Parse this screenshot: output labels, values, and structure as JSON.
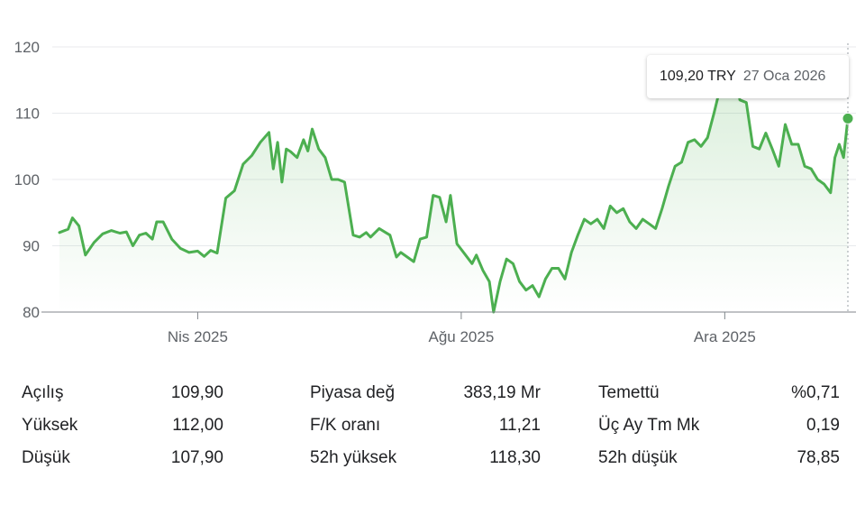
{
  "tooltip": {
    "price": "109,20 TRY",
    "date": "27 Oca 2026"
  },
  "chart_data": {
    "type": "area",
    "y_ticks": [
      80,
      90,
      100,
      110,
      120
    ],
    "y_tick_labels": [
      "80",
      "90",
      "100",
      "110",
      "120"
    ],
    "ylim": [
      80,
      120
    ],
    "x_ticks": [
      {
        "date": "2025-04-01",
        "label": "Nis 2025"
      },
      {
        "date": "2025-08-01",
        "label": "Ağu 2025"
      },
      {
        "date": "2025-12-01",
        "label": "Ara 2025"
      }
    ],
    "xlim": [
      "2025-01-27",
      "2026-01-27"
    ],
    "grid": true,
    "color": "#4caf50",
    "series": [
      {
        "values": [
          [
            "2025-01-27",
            92.0
          ],
          [
            "2025-01-31",
            92.5
          ],
          [
            "2025-02-02",
            94.2
          ],
          [
            "2025-02-05",
            93.0
          ],
          [
            "2025-02-08",
            88.6
          ],
          [
            "2025-02-12",
            90.5
          ],
          [
            "2025-02-16",
            91.8
          ],
          [
            "2025-02-20",
            92.3
          ],
          [
            "2025-02-24",
            91.9
          ],
          [
            "2025-02-27",
            92.1
          ],
          [
            "2025-03-02",
            90.0
          ],
          [
            "2025-03-05",
            91.6
          ],
          [
            "2025-03-08",
            91.9
          ],
          [
            "2025-03-11",
            91.0
          ],
          [
            "2025-03-13",
            93.6
          ],
          [
            "2025-03-16",
            93.6
          ],
          [
            "2025-03-20",
            91.0
          ],
          [
            "2025-03-24",
            89.6
          ],
          [
            "2025-03-28",
            89.0
          ],
          [
            "2025-04-01",
            89.2
          ],
          [
            "2025-04-04",
            88.4
          ],
          [
            "2025-04-07",
            89.3
          ],
          [
            "2025-04-10",
            88.9
          ],
          [
            "2025-04-14",
            97.2
          ],
          [
            "2025-04-18",
            98.3
          ],
          [
            "2025-04-22",
            102.3
          ],
          [
            "2025-04-26",
            103.6
          ],
          [
            "2025-04-30",
            105.6
          ],
          [
            "2025-05-04",
            107.1
          ],
          [
            "2025-05-06",
            101.6
          ],
          [
            "2025-05-08",
            105.6
          ],
          [
            "2025-05-10",
            99.6
          ],
          [
            "2025-05-12",
            104.6
          ],
          [
            "2025-05-14",
            104.2
          ],
          [
            "2025-05-17",
            103.3
          ],
          [
            "2025-05-20",
            106.0
          ],
          [
            "2025-05-22",
            104.3
          ],
          [
            "2025-05-24",
            107.6
          ],
          [
            "2025-05-27",
            104.6
          ],
          [
            "2025-05-30",
            103.3
          ],
          [
            "2025-06-02",
            100.0
          ],
          [
            "2025-06-05",
            100.0
          ],
          [
            "2025-06-08",
            99.6
          ],
          [
            "2025-06-12",
            91.6
          ],
          [
            "2025-06-15",
            91.3
          ],
          [
            "2025-06-18",
            92.0
          ],
          [
            "2025-06-20",
            91.3
          ],
          [
            "2025-06-24",
            92.6
          ],
          [
            "2025-06-27",
            92.0
          ],
          [
            "2025-06-29",
            91.6
          ],
          [
            "2025-07-02",
            88.3
          ],
          [
            "2025-07-04",
            89.0
          ],
          [
            "2025-07-07",
            88.3
          ],
          [
            "2025-07-10",
            87.6
          ],
          [
            "2025-07-13",
            91.0
          ],
          [
            "2025-07-16",
            91.3
          ],
          [
            "2025-07-19",
            97.6
          ],
          [
            "2025-07-22",
            97.3
          ],
          [
            "2025-07-25",
            93.6
          ],
          [
            "2025-07-27",
            97.6
          ],
          [
            "2025-07-30",
            90.3
          ],
          [
            "2025-08-03",
            88.6
          ],
          [
            "2025-08-06",
            87.3
          ],
          [
            "2025-08-08",
            88.6
          ],
          [
            "2025-08-11",
            86.3
          ],
          [
            "2025-08-14",
            84.6
          ],
          [
            "2025-08-16",
            80.0
          ],
          [
            "2025-08-19",
            84.6
          ],
          [
            "2025-08-22",
            88.0
          ],
          [
            "2025-08-25",
            87.3
          ],
          [
            "2025-08-28",
            84.6
          ],
          [
            "2025-08-31",
            83.3
          ],
          [
            "2025-09-03",
            84.0
          ],
          [
            "2025-09-06",
            82.3
          ],
          [
            "2025-09-09",
            85.0
          ],
          [
            "2025-09-12",
            86.6
          ],
          [
            "2025-09-15",
            86.6
          ],
          [
            "2025-09-18",
            85.0
          ],
          [
            "2025-09-21",
            89.0
          ],
          [
            "2025-09-24",
            91.6
          ],
          [
            "2025-09-27",
            94.0
          ],
          [
            "2025-09-30",
            93.3
          ],
          [
            "2025-10-03",
            94.0
          ],
          [
            "2025-10-06",
            92.6
          ],
          [
            "2025-10-09",
            96.0
          ],
          [
            "2025-10-12",
            95.0
          ],
          [
            "2025-10-15",
            95.6
          ],
          [
            "2025-10-18",
            93.6
          ],
          [
            "2025-10-21",
            92.6
          ],
          [
            "2025-10-24",
            94.0
          ],
          [
            "2025-10-27",
            93.3
          ],
          [
            "2025-10-30",
            92.6
          ],
          [
            "2025-11-02",
            95.6
          ],
          [
            "2025-11-05",
            99.0
          ],
          [
            "2025-11-08",
            102.0
          ],
          [
            "2025-11-11",
            102.6
          ],
          [
            "2025-11-14",
            105.6
          ],
          [
            "2025-11-17",
            106.0
          ],
          [
            "2025-11-20",
            105.0
          ],
          [
            "2025-11-23",
            106.3
          ],
          [
            "2025-11-26",
            110.0
          ],
          [
            "2025-11-29",
            114.0
          ],
          [
            "2025-12-02",
            115.0
          ],
          [
            "2025-12-05",
            118.3
          ],
          [
            "2025-12-08",
            112.0
          ],
          [
            "2025-12-11",
            111.6
          ],
          [
            "2025-12-14",
            105.0
          ],
          [
            "2025-12-17",
            104.6
          ],
          [
            "2025-12-20",
            107.0
          ],
          [
            "2025-12-23",
            104.6
          ],
          [
            "2025-12-26",
            102.0
          ],
          [
            "2025-12-29",
            108.3
          ],
          [
            "2026-01-01",
            105.3
          ],
          [
            "2026-01-04",
            105.3
          ],
          [
            "2026-01-07",
            102.0
          ],
          [
            "2026-01-10",
            101.6
          ],
          [
            "2026-01-13",
            100.0
          ],
          [
            "2026-01-16",
            99.3
          ],
          [
            "2026-01-19",
            98.0
          ],
          [
            "2026-01-21",
            103.3
          ],
          [
            "2026-01-23",
            105.3
          ],
          [
            "2026-01-25",
            103.3
          ],
          [
            "2026-01-27",
            109.2
          ]
        ]
      }
    ]
  },
  "stats": {
    "rows": [
      [
        {
          "k": "Açılış",
          "v": "109,90"
        },
        {
          "k": "Piyasa değ",
          "v": "383,19 Mr"
        },
        {
          "k": "Temettü",
          "v": "%0,71"
        }
      ],
      [
        {
          "k": "Yüksek",
          "v": "112,00"
        },
        {
          "k": "F/K oranı",
          "v": "11,21"
        },
        {
          "k": "Üç Ay Tm Mk",
          "v": "0,19"
        }
      ],
      [
        {
          "k": "Düşük",
          "v": "107,90"
        },
        {
          "k": "52h yüksek",
          "v": "118,30"
        },
        {
          "k": "52h düşük",
          "v": "78,85"
        }
      ]
    ]
  }
}
